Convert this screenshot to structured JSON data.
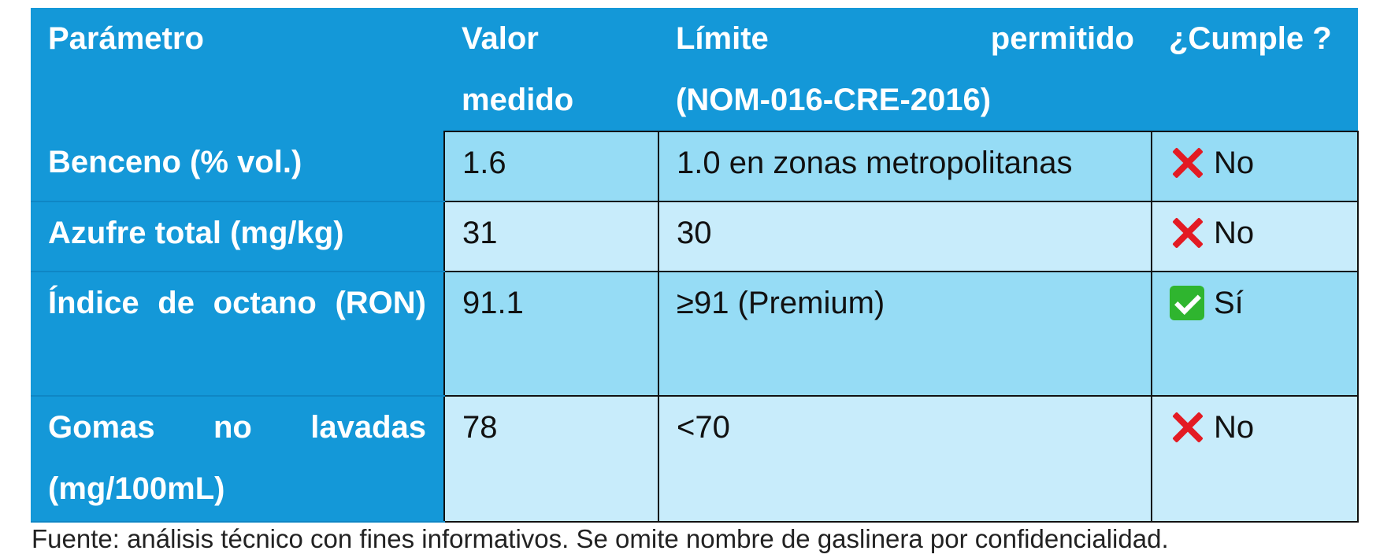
{
  "table": {
    "headers": [
      "Parámetro",
      "Valor medido",
      "Límite permitido",
      "(NOM-016-CRE-2016)",
      "¿Cumple ?"
    ],
    "rows": [
      {
        "param": "Benceno (% vol.)",
        "value": "1.6",
        "limit": "1.0 en zonas metropolitanas",
        "status_icon": "cross-mark-icon",
        "status": "No"
      },
      {
        "param": "Azufre total (mg/kg)",
        "value": "31",
        "limit": "30",
        "status_icon": "cross-mark-icon",
        "status": "No"
      },
      {
        "param": "Índice de octano (RON)",
        "value": "91.1",
        "limit": "≥91 (Premium)",
        "status_icon": "check-mark-icon",
        "status": "Sí"
      },
      {
        "param": "Gomas no lavadas (mg/100mL)",
        "value": "78",
        "limit": "<70",
        "status_icon": "cross-mark-icon",
        "status": "No"
      }
    ]
  },
  "footnote": "Fuente: análisis técnico con fines informativos. Se omite nombre de gaslinera por confidencialidad.",
  "colors": {
    "header_bg": "#1498d8",
    "row_dark": "#96dcf5",
    "row_light": "#c8ecfb",
    "cross": "#e31b23",
    "check": "#2fb52f"
  }
}
